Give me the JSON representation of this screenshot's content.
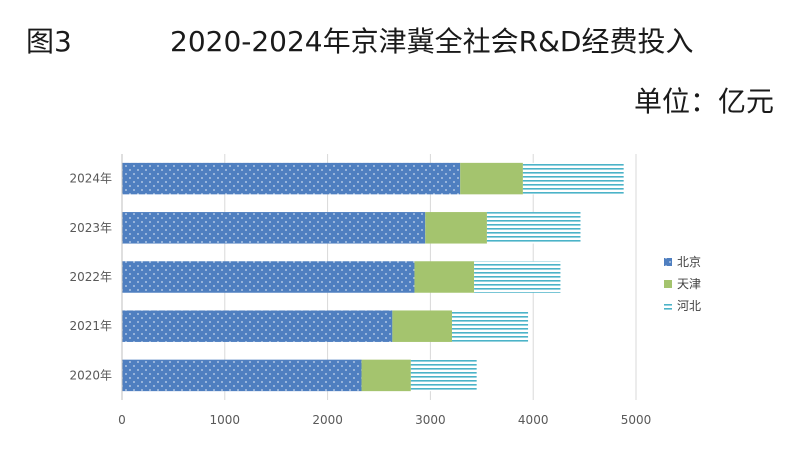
{
  "header": {
    "figure_label": "图3",
    "title": "2020-2024年京津冀全社会R&D经费投入",
    "unit": "单位：亿元"
  },
  "chart_data": {
    "type": "bar",
    "orientation": "horizontal",
    "stacked": true,
    "categories": [
      "2024年",
      "2023年",
      "2022年",
      "2021年",
      "2020年"
    ],
    "series": [
      {
        "name": "北京",
        "values": [
          3290,
          2950,
          2845,
          2630,
          2330
        ],
        "color": "#4f7fc0",
        "pattern": "dots"
      },
      {
        "name": "天津",
        "values": [
          610,
          600,
          580,
          580,
          480
        ],
        "color": "#a4c46e",
        "pattern": "solid"
      },
      {
        "name": "河北",
        "values": [
          980,
          910,
          840,
          740,
          640
        ],
        "color": "#4bb3c8",
        "pattern": "horizontal-lines"
      }
    ],
    "xlim": [
      0,
      5000
    ],
    "xticks": [
      0,
      1000,
      2000,
      3000,
      4000,
      5000
    ],
    "grid": true,
    "legend": "right"
  }
}
